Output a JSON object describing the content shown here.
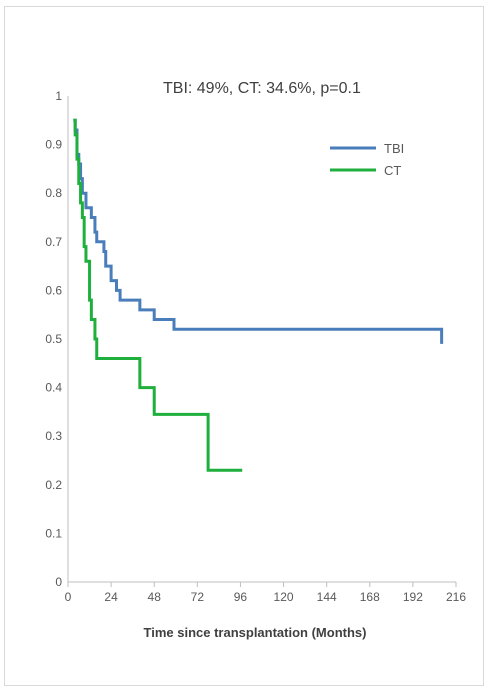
{
  "chart_data": {
    "type": "line",
    "step": true,
    "title": "",
    "annotation": "TBI: 49%, CT: 34.6%, p=0.1",
    "xlabel": "Time since transplantation (Months)",
    "ylabel": "",
    "xlim": [
      0,
      216
    ],
    "ylim": [
      0,
      1
    ],
    "xticks": [
      0,
      24,
      48,
      72,
      96,
      120,
      144,
      168,
      192,
      216
    ],
    "yticks": [
      0,
      0.1,
      0.2,
      0.3,
      0.4,
      0.5,
      0.6,
      0.7,
      0.8,
      0.9,
      1
    ],
    "ytick_labels": [
      "0",
      "0.1",
      "0.2",
      "0.3",
      "0.4",
      "0.5",
      "0.6",
      "0.7",
      "0.8",
      "0.9",
      "1"
    ],
    "grid": false,
    "legend_position": "top-right",
    "series": [
      {
        "name": "TBI",
        "color": "#4a7ebb",
        "x": [
          3,
          4,
          5,
          6,
          7,
          8,
          10,
          13,
          15,
          16,
          20,
          21,
          24,
          27,
          29,
          40,
          48,
          59,
          208
        ],
        "y": [
          0.95,
          0.93,
          0.88,
          0.86,
          0.83,
          0.8,
          0.77,
          0.75,
          0.72,
          0.7,
          0.68,
          0.65,
          0.62,
          0.6,
          0.58,
          0.56,
          0.54,
          0.52,
          0.49
        ]
      },
      {
        "name": "CT",
        "color": "#1faf3c",
        "x": [
          3,
          4,
          5,
          6,
          7,
          8,
          9,
          10,
          12,
          13,
          15,
          16,
          17,
          40,
          48,
          78,
          97
        ],
        "y": [
          0.95,
          0.92,
          0.87,
          0.82,
          0.78,
          0.75,
          0.69,
          0.66,
          0.58,
          0.54,
          0.5,
          0.46,
          0.46,
          0.4,
          0.345,
          0.23,
          0.23
        ]
      }
    ]
  }
}
